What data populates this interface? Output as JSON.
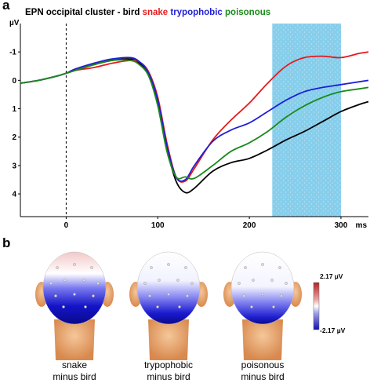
{
  "panel_a_label": "a",
  "panel_b_label": "b",
  "title": {
    "prefix": "EPN occipital cluster - bird",
    "snake": "snake",
    "trypophobic": "trypophobic",
    "poisonous": "poisonous"
  },
  "colors": {
    "bird": "#000000",
    "snake": "#e41a1c",
    "trypophobic": "#1f1fd6",
    "poisonous": "#1a8a1a",
    "shading": "#87ceeb"
  },
  "chart_data": {
    "type": "line",
    "y_unit": "µV",
    "x_unit": "ms",
    "xlim": [
      -50,
      330
    ],
    "ylim": [
      4.8,
      -2.0
    ],
    "y_inverted": true,
    "xticks": [
      "0",
      "100",
      "200",
      "300"
    ],
    "yticks": [
      "-1",
      "0",
      "1",
      "2",
      "3",
      "4"
    ],
    "stimulus_onset_ms": 0,
    "shaded_window_ms": [
      225,
      300
    ],
    "x": [
      -50,
      -30,
      -10,
      0,
      10,
      30,
      50,
      70,
      80,
      90,
      100,
      110,
      120,
      130,
      140,
      160,
      180,
      200,
      220,
      240,
      260,
      280,
      300,
      320,
      330
    ],
    "series": [
      {
        "name": "bird",
        "values": [
          0.1,
          0.0,
          -0.15,
          -0.25,
          -0.35,
          -0.55,
          -0.7,
          -0.75,
          -0.6,
          -0.2,
          0.8,
          2.4,
          3.55,
          3.95,
          3.8,
          3.2,
          2.9,
          2.75,
          2.45,
          2.1,
          1.8,
          1.45,
          1.1,
          0.85,
          0.75
        ]
      },
      {
        "name": "snake",
        "values": [
          0.1,
          0.0,
          -0.15,
          -0.25,
          -0.35,
          -0.45,
          -0.6,
          -0.7,
          -0.65,
          -0.3,
          0.6,
          2.2,
          3.4,
          3.55,
          3.1,
          2.1,
          1.4,
          0.8,
          0.1,
          -0.5,
          -0.8,
          -0.85,
          -0.8,
          -0.95,
          -1.0
        ]
      },
      {
        "name": "trypophobic",
        "values": [
          0.1,
          0.0,
          -0.15,
          -0.25,
          -0.4,
          -0.6,
          -0.75,
          -0.8,
          -0.65,
          -0.25,
          0.7,
          2.3,
          3.4,
          3.5,
          3.0,
          2.15,
          1.75,
          1.5,
          1.1,
          0.7,
          0.4,
          0.25,
          0.15,
          0.05,
          0.0
        ]
      },
      {
        "name": "poisonous",
        "values": [
          0.1,
          0.0,
          -0.15,
          -0.25,
          -0.35,
          -0.55,
          -0.7,
          -0.7,
          -0.55,
          -0.15,
          0.9,
          2.5,
          3.4,
          3.4,
          3.45,
          3.0,
          2.5,
          2.2,
          1.8,
          1.3,
          0.9,
          0.6,
          0.4,
          0.3,
          0.25
        ]
      }
    ]
  },
  "topo_maps": [
    {
      "line1": "snake",
      "line2": "minus bird"
    },
    {
      "line1": "trypophobic",
      "line2": "minus bird"
    },
    {
      "line1": "poisonous",
      "line2": "minus bird"
    }
  ],
  "colorbar": {
    "max": "2.17 µV",
    "min": "-2.17 µV"
  }
}
